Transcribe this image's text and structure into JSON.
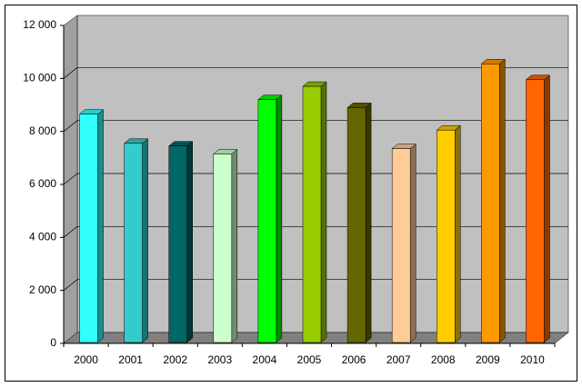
{
  "chart_data": {
    "type": "bar3d",
    "categories": [
      "2000",
      "2001",
      "2002",
      "2003",
      "2004",
      "2005",
      "2006",
      "2007",
      "2008",
      "2009",
      "2010"
    ],
    "values": [
      8650,
      7550,
      7450,
      7150,
      9200,
      9700,
      8900,
      7350,
      8050,
      10550,
      9950
    ],
    "colors": [
      "#33ffff",
      "#33cccc",
      "#006666",
      "#ccffcc",
      "#00ff00",
      "#99cc00",
      "#666600",
      "#ffcc99",
      "#ffcc00",
      "#ff9900",
      "#ff6600"
    ],
    "ylim": [
      0,
      12000
    ],
    "yticks": [
      0,
      {
        "value": 2000,
        "label": "2 000"
      },
      {
        "value": 4000,
        "label": "4 000"
      },
      {
        "value": 6000,
        "label": "6 000"
      },
      {
        "value": 8000,
        "label": "8 000"
      },
      {
        "value": 10000,
        "label": "10 000"
      },
      {
        "value": 12000,
        "label": "12 000"
      }
    ],
    "grid": true
  }
}
